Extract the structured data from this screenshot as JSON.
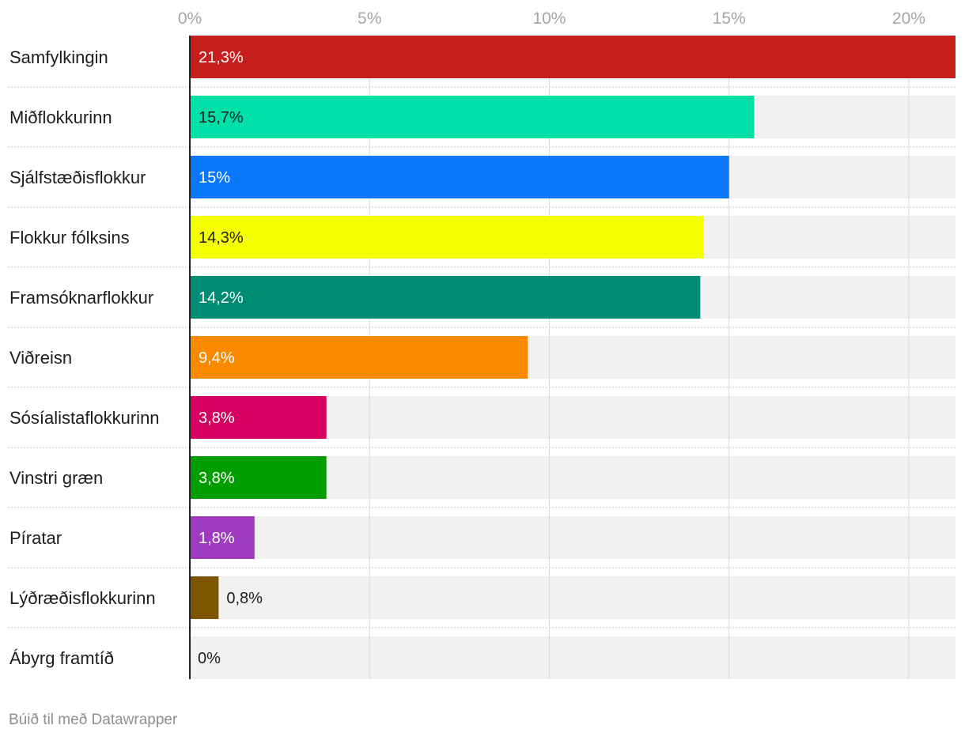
{
  "chart_data": {
    "type": "bar",
    "orientation": "horizontal",
    "categories": [
      "Samfylkingin",
      "Miðflokkurinn",
      "Sjálfstæðisflokkur",
      "Flokkur fólksins",
      "Framsóknarflokkur",
      "Viðreisn",
      "Sósíalistaflokkurinn",
      "Vinstri græn",
      "Píratar",
      "Lýðræðisflokkurinn",
      "Ábyrg framtíð"
    ],
    "values": [
      21.3,
      15.7,
      15,
      14.3,
      14.2,
      9.4,
      3.8,
      3.8,
      1.8,
      0.8,
      0
    ],
    "value_labels": [
      "21,3%",
      "15,7%",
      "15%",
      "14,3%",
      "14,2%",
      "9,4%",
      "3,8%",
      "3,8%",
      "1,8%",
      "0,8%",
      "0%"
    ],
    "colors": [
      "#c71e1d",
      "#00e0a8",
      "#0a77fb",
      "#f4ff00",
      "#008b73",
      "#f98a00",
      "#d5005f",
      "#009e00",
      "#a03ac0",
      "#7d5400",
      "#bdbdbd"
    ],
    "label_colors": [
      "#ffffff",
      "#1d1d1d",
      "#ffffff",
      "#1d1d1d",
      "#ffffff",
      "#ffffff",
      "#ffffff",
      "#ffffff",
      "#ffffff",
      "#1d1d1d",
      "#1d1d1d"
    ],
    "xticks": [
      0,
      5,
      10,
      15,
      20
    ],
    "xtick_labels": [
      "0%",
      "5%",
      "10%",
      "15%",
      "20%"
    ],
    "xlim": [
      0,
      21.3
    ],
    "title": "",
    "xlabel": "",
    "ylabel": "",
    "grid": true,
    "background_bar_color": "#f1f1f1"
  },
  "footer": "Búið til með Datawrapper"
}
